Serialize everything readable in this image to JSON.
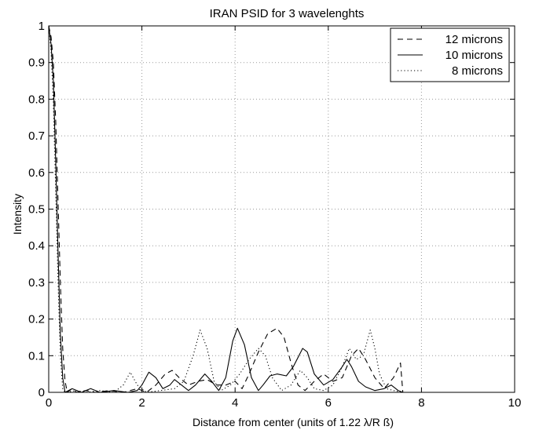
{
  "chart_data": {
    "type": "line",
    "title": "IRAN PSID for 3 wavelenghts",
    "xlabel": "Distance from center (units of 1.22 λ/R ß)",
    "ylabel": "Intensity",
    "xlim": [
      0,
      10
    ],
    "ylim": [
      0,
      1
    ],
    "x_ticks": [
      "0",
      "2",
      "4",
      "6",
      "8",
      "10"
    ],
    "y_ticks": [
      "0",
      "0.1",
      "0.2",
      "0.3",
      "0.4",
      "0.5",
      "0.6",
      "0.7",
      "0.8",
      "0.9",
      "1"
    ],
    "grid": true,
    "legend_position": "top-right",
    "series": [
      {
        "name": "12 microns",
        "style": "dashed",
        "color": "#000000",
        "points": [
          [
            0,
            1.0
          ],
          [
            0.05,
            0.97
          ],
          [
            0.1,
            0.9
          ],
          [
            0.15,
            0.74
          ],
          [
            0.2,
            0.52
          ],
          [
            0.25,
            0.3
          ],
          [
            0.3,
            0.12
          ],
          [
            0.35,
            0.03
          ],
          [
            0.4,
            0.0
          ],
          [
            0.5,
            0.01
          ],
          [
            0.6,
            0.0
          ],
          [
            0.8,
            0.005
          ],
          [
            1.0,
            0.0
          ],
          [
            1.3,
            0.005
          ],
          [
            1.6,
            0.0
          ],
          [
            1.9,
            0.01
          ],
          [
            2.1,
            0.0
          ],
          [
            2.3,
            0.02
          ],
          [
            2.5,
            0.05
          ],
          [
            2.65,
            0.06
          ],
          [
            2.8,
            0.04
          ],
          [
            3.0,
            0.02
          ],
          [
            3.2,
            0.03
          ],
          [
            3.4,
            0.035
          ],
          [
            3.6,
            0.02
          ],
          [
            3.8,
            0.02
          ],
          [
            4.0,
            0.03
          ],
          [
            4.15,
            0.01
          ],
          [
            4.3,
            0.05
          ],
          [
            4.5,
            0.11
          ],
          [
            4.7,
            0.16
          ],
          [
            4.9,
            0.175
          ],
          [
            5.05,
            0.15
          ],
          [
            5.2,
            0.08
          ],
          [
            5.35,
            0.02
          ],
          [
            5.5,
            0.005
          ],
          [
            5.7,
            0.03
          ],
          [
            5.9,
            0.05
          ],
          [
            6.1,
            0.03
          ],
          [
            6.3,
            0.04
          ],
          [
            6.5,
            0.1
          ],
          [
            6.65,
            0.12
          ],
          [
            6.8,
            0.09
          ],
          [
            7.0,
            0.04
          ],
          [
            7.2,
            0.01
          ],
          [
            7.4,
            0.04
          ],
          [
            7.55,
            0.08
          ],
          [
            7.6,
            0.0
          ]
        ]
      },
      {
        "name": "10 microns",
        "style": "solid",
        "color": "#000000",
        "points": [
          [
            0,
            1.0
          ],
          [
            0.05,
            0.95
          ],
          [
            0.1,
            0.85
          ],
          [
            0.15,
            0.63
          ],
          [
            0.2,
            0.38
          ],
          [
            0.25,
            0.16
          ],
          [
            0.3,
            0.04
          ],
          [
            0.35,
            0.0
          ],
          [
            0.5,
            0.01
          ],
          [
            0.7,
            0.0
          ],
          [
            0.9,
            0.01
          ],
          [
            1.1,
            0.0
          ],
          [
            1.4,
            0.005
          ],
          [
            1.7,
            0.0
          ],
          [
            1.9,
            0.005
          ],
          [
            2.0,
            0.02
          ],
          [
            2.15,
            0.055
          ],
          [
            2.3,
            0.04
          ],
          [
            2.45,
            0.01
          ],
          [
            2.6,
            0.02
          ],
          [
            2.7,
            0.035
          ],
          [
            2.85,
            0.02
          ],
          [
            3.0,
            0.005
          ],
          [
            3.15,
            0.02
          ],
          [
            3.35,
            0.05
          ],
          [
            3.5,
            0.03
          ],
          [
            3.65,
            0.005
          ],
          [
            3.8,
            0.04
          ],
          [
            3.95,
            0.14
          ],
          [
            4.05,
            0.175
          ],
          [
            4.2,
            0.13
          ],
          [
            4.35,
            0.04
          ],
          [
            4.5,
            0.005
          ],
          [
            4.6,
            0.02
          ],
          [
            4.75,
            0.045
          ],
          [
            4.9,
            0.05
          ],
          [
            5.1,
            0.045
          ],
          [
            5.25,
            0.07
          ],
          [
            5.45,
            0.12
          ],
          [
            5.55,
            0.11
          ],
          [
            5.7,
            0.05
          ],
          [
            5.9,
            0.02
          ],
          [
            6.1,
            0.035
          ],
          [
            6.3,
            0.07
          ],
          [
            6.4,
            0.09
          ],
          [
            6.5,
            0.07
          ],
          [
            6.65,
            0.03
          ],
          [
            6.8,
            0.015
          ],
          [
            7.0,
            0.005
          ],
          [
            7.2,
            0.01
          ],
          [
            7.35,
            0.02
          ],
          [
            7.5,
            0.005
          ],
          [
            7.6,
            0.0
          ]
        ]
      },
      {
        "name": "8 microns",
        "style": "dotted",
        "color": "#000000",
        "points": [
          [
            0,
            1.0
          ],
          [
            0.05,
            0.93
          ],
          [
            0.1,
            0.79
          ],
          [
            0.15,
            0.55
          ],
          [
            0.2,
            0.3
          ],
          [
            0.25,
            0.1
          ],
          [
            0.3,
            0.01
          ],
          [
            0.35,
            0.0
          ],
          [
            0.6,
            0.005
          ],
          [
            0.8,
            0.0
          ],
          [
            1.1,
            0.005
          ],
          [
            1.4,
            0.0
          ],
          [
            1.6,
            0.02
          ],
          [
            1.75,
            0.055
          ],
          [
            1.9,
            0.02
          ],
          [
            2.1,
            0.0
          ],
          [
            2.4,
            0.005
          ],
          [
            2.7,
            0.01
          ],
          [
            2.9,
            0.03
          ],
          [
            3.1,
            0.1
          ],
          [
            3.25,
            0.17
          ],
          [
            3.4,
            0.12
          ],
          [
            3.55,
            0.03
          ],
          [
            3.7,
            0.005
          ],
          [
            3.9,
            0.02
          ],
          [
            4.1,
            0.05
          ],
          [
            4.3,
            0.09
          ],
          [
            4.5,
            0.12
          ],
          [
            4.65,
            0.1
          ],
          [
            4.8,
            0.04
          ],
          [
            5.0,
            0.005
          ],
          [
            5.2,
            0.02
          ],
          [
            5.4,
            0.06
          ],
          [
            5.55,
            0.04
          ],
          [
            5.7,
            0.01
          ],
          [
            5.9,
            0.005
          ],
          [
            6.1,
            0.02
          ],
          [
            6.3,
            0.07
          ],
          [
            6.45,
            0.12
          ],
          [
            6.6,
            0.09
          ],
          [
            6.75,
            0.1
          ],
          [
            6.9,
            0.17
          ],
          [
            7.0,
            0.12
          ],
          [
            7.1,
            0.05
          ],
          [
            7.25,
            0.01
          ],
          [
            7.4,
            0.005
          ],
          [
            7.6,
            0.0
          ]
        ]
      }
    ]
  }
}
